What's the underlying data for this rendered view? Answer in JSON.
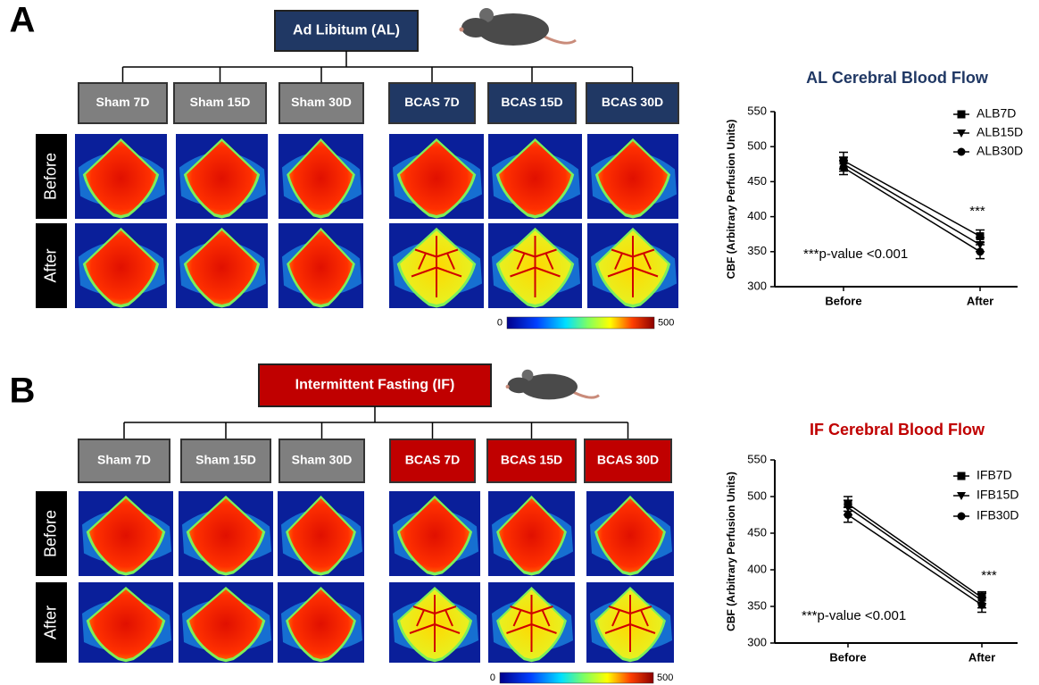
{
  "panels": [
    {
      "label": "A",
      "title": "Ad Libitum (AL)",
      "color": "#203864",
      "groups": [
        "Sham 7D",
        "Sham 15D",
        "Sham 30D",
        "BCAS 7D",
        "BCAS 15D",
        "BCAS 30D"
      ],
      "rows": [
        "Before",
        "After"
      ],
      "colorbar": {
        "min": 0,
        "max": 500
      }
    },
    {
      "label": "B",
      "title": "Intermittent Fasting (IF)",
      "color": "#c00000",
      "groups": [
        "Sham 7D",
        "Sham 15D",
        "Sham 30D",
        "BCAS 7D",
        "BCAS 15D",
        "BCAS 30D"
      ],
      "rows": [
        "Before",
        "After"
      ],
      "colorbar": {
        "min": 0,
        "max": 500
      }
    }
  ],
  "chart_data": [
    {
      "type": "line",
      "title": "AL Cerebral Blood Flow",
      "title_color": "#203864",
      "ylabel": "CBF (Arbitrary Perfusion Units)",
      "categories": [
        "Before",
        "After"
      ],
      "series": [
        {
          "name": "ALB7D",
          "color": "#000000",
          "marker": "square",
          "values": [
            480,
            372
          ],
          "errors": [
            12,
            9
          ]
        },
        {
          "name": "ALB15D",
          "color": "#000000",
          "marker": "triangle-down",
          "values": [
            475,
            360
          ],
          "errors": [
            10,
            10
          ]
        },
        {
          "name": "ALB30D",
          "color": "#000000",
          "marker": "circle",
          "values": [
            470,
            350
          ],
          "errors": [
            10,
            10
          ]
        }
      ],
      "ylim": [
        300,
        550
      ],
      "yticks": [
        300,
        350,
        400,
        450,
        500,
        550
      ],
      "legend": "upper right",
      "annotations": [
        "***",
        "***p-value <0.001"
      ]
    },
    {
      "type": "line",
      "title": "IF Cerebral Blood Flow",
      "title_color": "#c00000",
      "ylabel": "CBF (Arbitrary Perfusion Units)",
      "categories": [
        "Before",
        "After"
      ],
      "series": [
        {
          "name": "IFB7D",
          "color": "#000000",
          "marker": "square",
          "values": [
            490,
            362
          ],
          "errors": [
            10,
            8
          ]
        },
        {
          "name": "IFB15D",
          "color": "#000000",
          "marker": "triangle-down",
          "values": [
            485,
            358
          ],
          "errors": [
            10,
            10
          ]
        },
        {
          "name": "IFB30D",
          "color": "#000000",
          "marker": "circle",
          "values": [
            475,
            352
          ],
          "errors": [
            10,
            10
          ]
        }
      ],
      "ylim": [
        300,
        550
      ],
      "yticks": [
        300,
        350,
        400,
        450,
        500,
        550
      ],
      "legend": "upper right",
      "annotations": [
        "***",
        "***p-value <0.001"
      ]
    }
  ]
}
